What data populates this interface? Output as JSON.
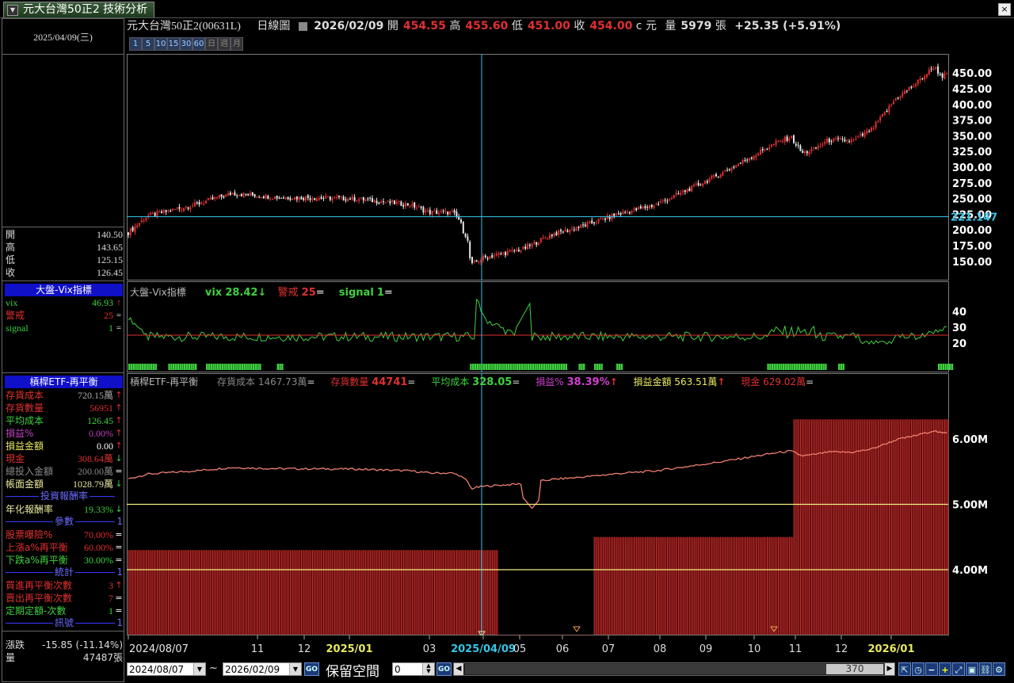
{
  "tab": {
    "title": "元大台灣50正2 技術分析",
    "close": "×"
  },
  "left": {
    "date": "2025/04/09(三)",
    "ohlc": [
      {
        "label": "開",
        "value": "140.50"
      },
      {
        "label": "高",
        "value": "143.65"
      },
      {
        "label": "低",
        "value": "125.15"
      },
      {
        "label": "收",
        "value": "126.45"
      }
    ],
    "vix_section": "大盤-Vix指標",
    "vix_rows": [
      {
        "label": "vix",
        "value": "46.93",
        "arrow": "↑",
        "color": "#3fd13f"
      },
      {
        "label": "警戒",
        "value": "25",
        "arrow": "=",
        "color": "#e03030"
      },
      {
        "label": "signal",
        "value": "1",
        "arrow": "=",
        "color": "#3fd13f"
      }
    ],
    "etf_section": "槓桿ETF-再平衡",
    "etf_rows": [
      {
        "label": "存貨成本",
        "value": "720.15萬",
        "arrow": "↑",
        "color": "#e03030",
        "vcolor": "#aaa"
      },
      {
        "label": "存貨數量",
        "value": "56951",
        "arrow": "↑",
        "color": "#e03030",
        "vcolor": "#e03030"
      },
      {
        "label": "平均成本",
        "value": "126.45",
        "arrow": "↑",
        "color": "#3fd13f",
        "vcolor": "#3fd13f"
      },
      {
        "label": "損益%",
        "value": "0.00%",
        "arrow": "↑",
        "color": "#c040c0",
        "vcolor": "#c040c0"
      },
      {
        "label": "損益金額",
        "value": "0.00",
        "arrow": "↑",
        "color": "#e8e860",
        "vcolor": "#fff"
      },
      {
        "label": "現金",
        "value": "308.64萬",
        "arrow": "↓",
        "color": "#e03030",
        "vcolor": "#e03030"
      },
      {
        "label": "總投入金額",
        "value": "200.00萬",
        "arrow": "=",
        "color": "#888",
        "vcolor": "#888"
      },
      {
        "label": "帳面金額",
        "value": "1028.79萬",
        "arrow": "↓",
        "color": "#e8e8a0",
        "vcolor": "#e8e8a0"
      }
    ],
    "sep1": "投資報酬率",
    "annual": {
      "label": "年化報酬率",
      "value": "19.33%",
      "arrow": "↓"
    },
    "sep2": "參數",
    "params": [
      {
        "label": "股票曝險%",
        "value": "70.00%",
        "arrow": "=",
        "color": "#e03030"
      },
      {
        "label": "上漲a%再平衡",
        "value": "60.00%",
        "arrow": "=",
        "color": "#e03030"
      },
      {
        "label": "下跌a%再平衡",
        "value": "30.00%",
        "arrow": "=",
        "color": "#3fd13f"
      }
    ],
    "sep2_val": "1",
    "sep3": "統計",
    "sep3_val": "1",
    "stats": [
      {
        "label": "買進再平衡次數",
        "value": "3",
        "arrow": "↑",
        "color": "#e03030"
      },
      {
        "label": "賣出再平衡次數",
        "value": "7",
        "arrow": "=",
        "color": "#e03030"
      },
      {
        "label": "定期定額-次數",
        "value": "1",
        "arrow": "=",
        "color": "#3fd13f"
      }
    ],
    "sep4": "訊號",
    "sep4_val": "1",
    "change": {
      "label": "漲跌",
      "value": "-15.85 (-11.14%)"
    },
    "volume": {
      "label": "量",
      "value": "47487張"
    }
  },
  "header": {
    "name": "元大台灣50正2(00631L)",
    "period": "日線圖",
    "date": "2026/02/09",
    "open_label": "開",
    "open": "454.55",
    "high_label": "高",
    "high": "455.60",
    "low_label": "低",
    "low": "451.00",
    "close_label": "收",
    "close": "454.00",
    "currency": "c 元",
    "vol_label": "量",
    "vol": "5979",
    "vol_unit": "張",
    "change": "+25.35 (+5.91%)"
  },
  "period_buttons": [
    "1",
    "5",
    "10",
    "15",
    "30",
    "60",
    "日",
    "週",
    "月"
  ],
  "price_axis": [
    "450.00",
    "425.00",
    "400.00",
    "375.00",
    "350.00",
    "325.00",
    "300.00",
    "275.00",
    "250.00",
    "225.00",
    "200.00",
    "175.00",
    "150.00"
  ],
  "crosshair_price": "221.147",
  "vix_pane": {
    "title": "大盤-Vix指標",
    "vix_label": "vix",
    "vix_val": "28.42",
    "vix_arrow": "↓",
    "warn_label": "警戒",
    "warn_val": "25",
    "warn_arrow": "=",
    "sig_label": "signal",
    "sig_val": "1",
    "sig_arrow": "=",
    "axis": [
      "40",
      "30",
      "20"
    ]
  },
  "etf_pane": {
    "title": "槓桿ETF-再平衡",
    "cost_label": "存貨成本",
    "cost_val": "1467.73萬",
    "cost_arrow": "=",
    "qty_label": "存貨數量",
    "qty_val": "44741",
    "qty_arrow": "=",
    "avg_label": "平均成本",
    "avg_val": "328.05",
    "avg_arrow": "=",
    "pl_label": "損益%",
    "pl_val": "38.39%",
    "pl_arrow": "↑",
    "plamt_label": "損益金額",
    "plamt_val": "563.51萬",
    "plamt_arrow": "↑",
    "cash_label": "現金",
    "cash_val": "629.02萬",
    "cash_arrow": "=",
    "axis": [
      "6.00M",
      "5.00M",
      "4.00M"
    ]
  },
  "time_axis": [
    "2024/08/07",
    "11",
    "12",
    "2025/01",
    "03",
    "2025/04/09",
    "05",
    "06",
    "07",
    "08",
    "09",
    "10",
    "11",
    "12",
    "2026/01"
  ],
  "bottom": {
    "from": "2024/08/07",
    "tilde": "~",
    "to": "2026/02/09",
    "go": "GO",
    "reserve": "保留空間",
    "reserve_val": "0",
    "bars": "370"
  }
}
